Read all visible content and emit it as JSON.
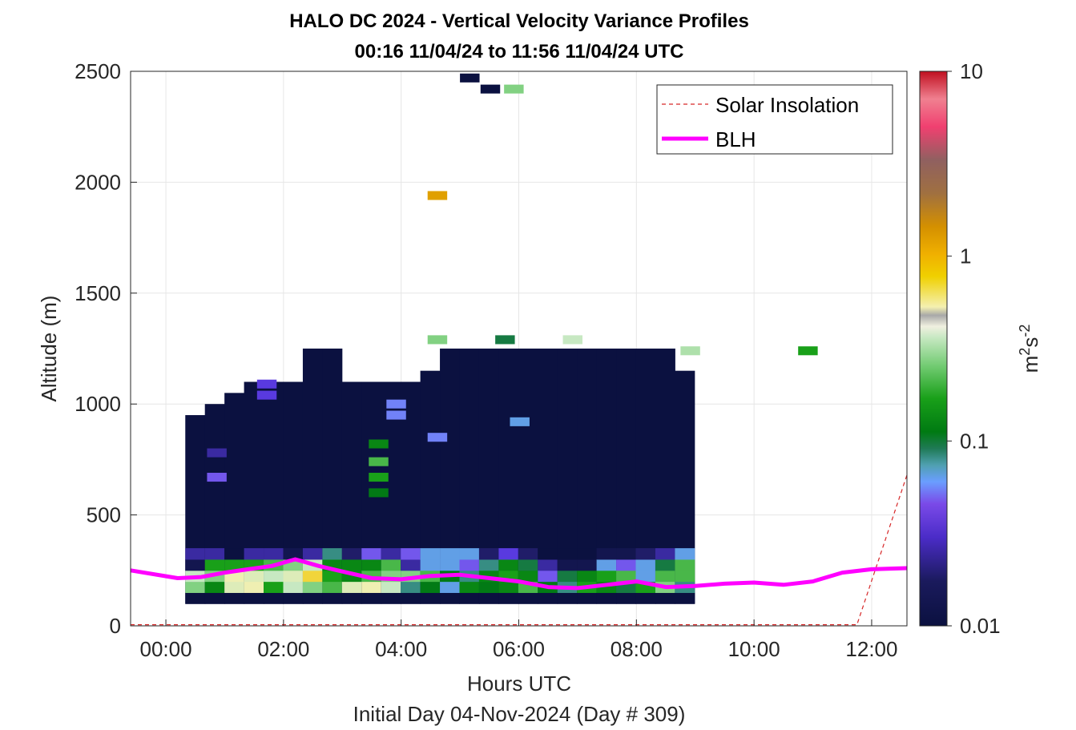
{
  "chart_data": {
    "type": "heatmap",
    "title_line1": "HALO DC 2024 - Vertical Velocity Variance Profiles",
    "title_line2": "00:16 11/04/24 to 11:56 11/04/24  UTC",
    "xlabel": "Hours UTC",
    "subxlabel": "Initial Day 04-Nov-2024 (Day # 309)",
    "ylabel": "Altitude (m)",
    "colorbar_label_base": "m",
    "colorbar_label_exp1": "2",
    "colorbar_label_mid": "s",
    "colorbar_label_exp2": "-2",
    "xlim_hours": [
      -0.6,
      12.6
    ],
    "ylim_m": [
      0,
      2500
    ],
    "x_ticks": [
      {
        "h": 0,
        "label": "00:00"
      },
      {
        "h": 2,
        "label": "02:00"
      },
      {
        "h": 4,
        "label": "04:00"
      },
      {
        "h": 6,
        "label": "06:00"
      },
      {
        "h": 8,
        "label": "08:00"
      },
      {
        "h": 10,
        "label": "10:00"
      },
      {
        "h": 12,
        "label": "12:00"
      }
    ],
    "y_ticks": [
      {
        "v": 0,
        "label": "0"
      },
      {
        "v": 500,
        "label": "500"
      },
      {
        "v": 1000,
        "label": "1000"
      },
      {
        "v": 1500,
        "label": "1500"
      },
      {
        "v": 2000,
        "label": "2000"
      },
      {
        "v": 2500,
        "label": "2500"
      }
    ],
    "colorbar_ticks": [
      {
        "v": 0.01,
        "label": "0.01"
      },
      {
        "v": 0.1,
        "label": "0.1"
      },
      {
        "v": 1,
        "label": "1"
      },
      {
        "v": 10,
        "label": "10"
      }
    ],
    "colorbar_scale": "log",
    "colorbar_range": [
      0.01,
      10
    ],
    "legend": {
      "placement": "top-right",
      "entries": [
        {
          "label": "Solar Insolation",
          "style": "dashed",
          "color": "#d62728"
        },
        {
          "label": "BLH",
          "style": "solid",
          "color": "#ff00ff"
        }
      ]
    },
    "grid": true,
    "heatmap": {
      "x_start_hour": 0.33,
      "x_step_hour": 0.333,
      "cols": 26,
      "y_bottom_m": 100,
      "y_step_m": 50,
      "column_top_m": [
        950,
        1000,
        1050,
        1100,
        1100,
        1100,
        1250,
        1250,
        1100,
        1100,
        1100,
        1100,
        1150,
        1250,
        1250,
        1250,
        1250,
        1250,
        1250,
        1250,
        1250,
        1250,
        1250,
        1250,
        1250,
        1150
      ],
      "background_value": 0.01,
      "surface_rows_note": "lowest four layers show higher variance",
      "surface_values": [
        [
          0.01,
          0.15,
          0.2,
          0.012,
          0.02
        ],
        [
          0.01,
          0.08,
          0.15,
          0.1,
          0.02
        ],
        [
          0.01,
          0.25,
          0.3,
          0.1,
          0.01
        ],
        [
          0.01,
          0.3,
          0.25,
          0.1,
          0.02
        ],
        [
          0.01,
          0.1,
          0.2,
          0.12,
          0.02
        ],
        [
          0.01,
          0.2,
          0.25,
          0.15,
          0.012
        ],
        [
          0.01,
          0.15,
          0.5,
          0.2,
          0.02
        ],
        [
          0.01,
          0.12,
          0.1,
          0.08,
          0.05
        ],
        [
          0.01,
          0.25,
          0.08,
          0.08,
          0.015
        ],
        [
          0.01,
          0.3,
          0.12,
          0.08,
          0.03
        ],
        [
          0.01,
          0.2,
          0.15,
          0.12,
          0.02
        ],
        [
          0.01,
          0.05,
          0.15,
          0.02,
          0.03
        ],
        [
          0.01,
          0.07,
          0.12,
          0.04,
          0.04
        ],
        [
          0.01,
          0.04,
          0.07,
          0.04,
          0.04
        ],
        [
          0.01,
          0.08,
          0.05,
          0.03,
          0.04
        ],
        [
          0.01,
          0.07,
          0.08,
          0.05,
          0.015
        ],
        [
          0.01,
          0.08,
          0.1,
          0.08,
          0.025
        ],
        [
          0.01,
          0.12,
          0.08,
          0.06,
          0.015
        ],
        [
          0.01,
          0.07,
          0.03,
          0.02,
          0.01
        ],
        [
          0.01,
          0.05,
          0.06,
          0.012,
          0.01
        ],
        [
          0.01,
          0.1,
          0.08,
          0.012,
          0.01
        ],
        [
          0.01,
          0.08,
          0.1,
          0.04,
          0.012
        ],
        [
          0.01,
          0.06,
          0.12,
          0.03,
          0.012
        ],
        [
          0.01,
          0.1,
          0.04,
          0.04,
          0.015
        ],
        [
          0.01,
          0.15,
          0.12,
          0.06,
          0.02
        ],
        [
          0.01,
          0.05,
          0.12,
          0.12,
          0.04
        ]
      ],
      "extra_cells": [
        {
          "h": 5.0,
          "m": 2450,
          "v": 0.01
        },
        {
          "h": 5.35,
          "m": 2400,
          "v": 0.01
        },
        {
          "h": 5.75,
          "m": 2400,
          "v": 0.15
        },
        {
          "h": 4.45,
          "m": 1920,
          "v": 1.0
        },
        {
          "h": 4.45,
          "m": 1270,
          "v": 0.15
        },
        {
          "h": 5.6,
          "m": 1270,
          "v": 0.06
        },
        {
          "h": 6.75,
          "m": 1270,
          "v": 0.2
        },
        {
          "h": 8.75,
          "m": 1220,
          "v": 0.18
        },
        {
          "h": 10.75,
          "m": 1220,
          "v": 0.1
        },
        {
          "h": 1.55,
          "m": 1070,
          "v": 0.025
        },
        {
          "h": 1.55,
          "m": 1020,
          "v": 0.025
        },
        {
          "h": 3.75,
          "m": 980,
          "v": 0.035
        },
        {
          "h": 3.75,
          "m": 930,
          "v": 0.035
        },
        {
          "h": 3.45,
          "m": 800,
          "v": 0.08
        },
        {
          "h": 3.45,
          "m": 720,
          "v": 0.12
        },
        {
          "h": 3.45,
          "m": 650,
          "v": 0.1
        },
        {
          "h": 3.45,
          "m": 580,
          "v": 0.07
        },
        {
          "h": 0.7,
          "m": 760,
          "v": 0.02
        },
        {
          "h": 0.7,
          "m": 650,
          "v": 0.03
        },
        {
          "h": 5.85,
          "m": 900,
          "v": 0.04
        },
        {
          "h": 4.45,
          "m": 830,
          "v": 0.035
        }
      ]
    },
    "blh_series": {
      "name": "BLH",
      "points": [
        [
          -0.6,
          250
        ],
        [
          0.2,
          215
        ],
        [
          0.6,
          220
        ],
        [
          1.0,
          240
        ],
        [
          1.4,
          255
        ],
        [
          1.8,
          270
        ],
        [
          2.2,
          300
        ],
        [
          2.6,
          270
        ],
        [
          3.0,
          245
        ],
        [
          3.5,
          215
        ],
        [
          4.0,
          210
        ],
        [
          4.5,
          225
        ],
        [
          5.0,
          230
        ],
        [
          5.5,
          215
        ],
        [
          6.0,
          200
        ],
        [
          6.5,
          175
        ],
        [
          7.0,
          170
        ],
        [
          7.5,
          185
        ],
        [
          8.0,
          200
        ],
        [
          8.5,
          175
        ],
        [
          9.0,
          180
        ],
        [
          9.5,
          190
        ],
        [
          10.0,
          195
        ],
        [
          10.5,
          185
        ],
        [
          11.0,
          200
        ],
        [
          11.5,
          240
        ],
        [
          12.0,
          255
        ],
        [
          12.6,
          260
        ]
      ]
    },
    "solar_series": {
      "name": "Solar Insolation",
      "points": [
        [
          -0.6,
          5
        ],
        [
          11.75,
          5
        ],
        [
          12.6,
          680
        ]
      ]
    }
  }
}
